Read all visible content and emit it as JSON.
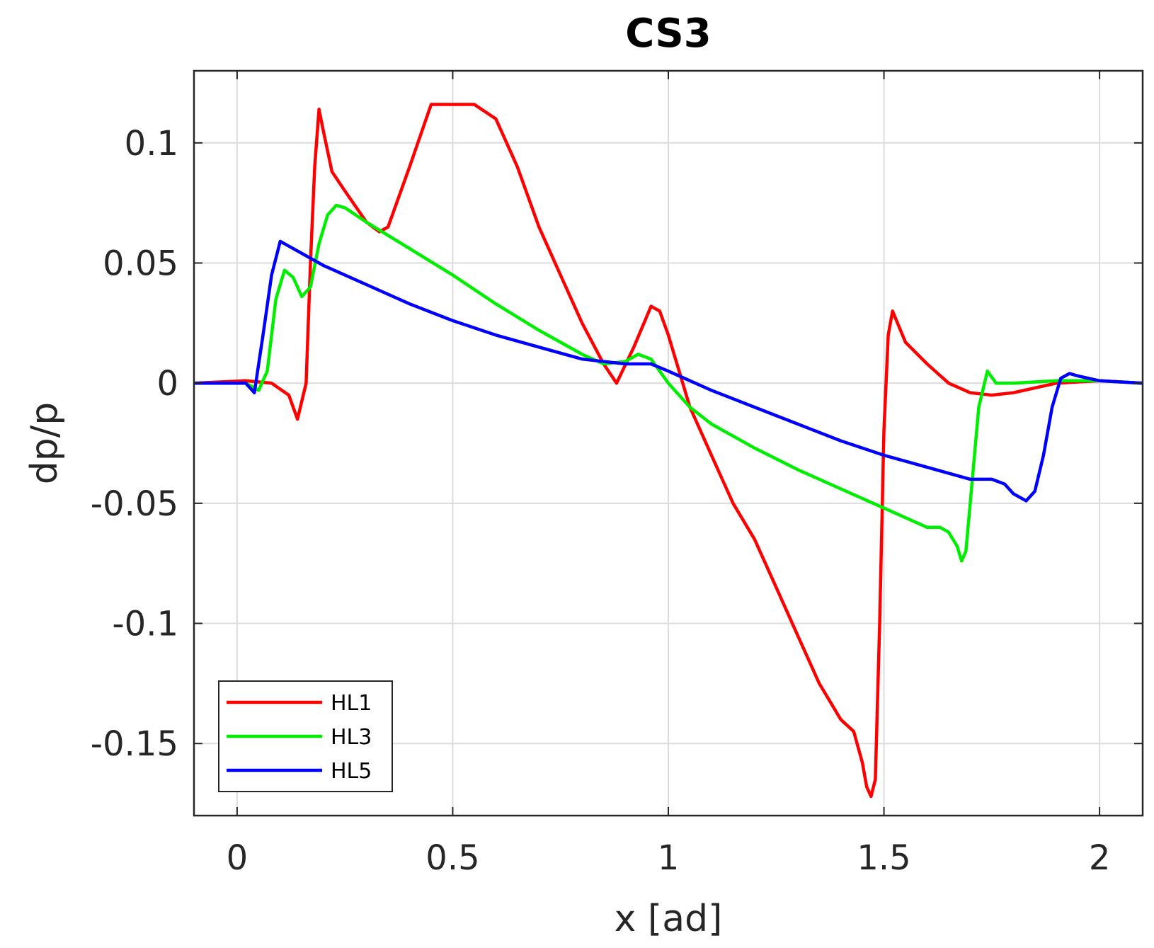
{
  "chart_data": {
    "type": "line",
    "title": "CS3",
    "xlabel": "x [ad]",
    "ylabel": "dp/p",
    "xlim": [
      -0.1,
      2.1
    ],
    "ylim": [
      -0.18,
      0.13
    ],
    "xticks": [
      0,
      0.5,
      1,
      1.5,
      2
    ],
    "xtick_labels": [
      "0",
      "0.5",
      "1",
      "1.5",
      "2"
    ],
    "yticks": [
      -0.15,
      -0.1,
      -0.05,
      0,
      0.05,
      0.1
    ],
    "ytick_labels": [
      "-0.15",
      "-0.1",
      "-0.05",
      "0",
      "0.05",
      "0.1"
    ],
    "grid": true,
    "legend_position": "bottom-left",
    "series": [
      {
        "name": "HL1",
        "color": "#ff0000",
        "x": [
          -0.1,
          0.02,
          0.08,
          0.12,
          0.14,
          0.16,
          0.17,
          0.18,
          0.19,
          0.2,
          0.22,
          0.25,
          0.3,
          0.33,
          0.35,
          0.4,
          0.45,
          0.5,
          0.55,
          0.6,
          0.65,
          0.7,
          0.75,
          0.8,
          0.85,
          0.88,
          0.92,
          0.96,
          0.98,
          1.0,
          1.05,
          1.1,
          1.15,
          1.2,
          1.25,
          1.3,
          1.35,
          1.4,
          1.43,
          1.45,
          1.46,
          1.47,
          1.48,
          1.49,
          1.5,
          1.51,
          1.52,
          1.55,
          1.6,
          1.65,
          1.7,
          1.75,
          1.8,
          1.85,
          1.9,
          2.0,
          2.1
        ],
        "y": [
          0,
          0.001,
          0.0,
          -0.005,
          -0.015,
          0.0,
          0.05,
          0.09,
          0.114,
          0.105,
          0.088,
          0.08,
          0.067,
          0.063,
          0.065,
          0.09,
          0.116,
          0.116,
          0.116,
          0.11,
          0.09,
          0.065,
          0.045,
          0.025,
          0.008,
          0.0,
          0.015,
          0.032,
          0.03,
          0.02,
          -0.01,
          -0.03,
          -0.05,
          -0.065,
          -0.085,
          -0.105,
          -0.125,
          -0.14,
          -0.145,
          -0.158,
          -0.168,
          -0.172,
          -0.165,
          -0.1,
          -0.02,
          0.02,
          0.03,
          0.017,
          0.008,
          0.0,
          -0.004,
          -0.005,
          -0.004,
          -0.002,
          0.0,
          0.001,
          0.0
        ]
      },
      {
        "name": "HL3",
        "color": "#00ee00",
        "x": [
          -0.1,
          0.02,
          0.05,
          0.07,
          0.09,
          0.11,
          0.13,
          0.15,
          0.17,
          0.19,
          0.21,
          0.23,
          0.25,
          0.3,
          0.4,
          0.5,
          0.6,
          0.7,
          0.8,
          0.85,
          0.9,
          0.93,
          0.96,
          1.0,
          1.05,
          1.1,
          1.2,
          1.3,
          1.4,
          1.5,
          1.6,
          1.63,
          1.65,
          1.67,
          1.68,
          1.69,
          1.7,
          1.72,
          1.74,
          1.76,
          1.8,
          1.9,
          2.0,
          2.1
        ],
        "y": [
          0,
          0.0,
          -0.003,
          0.005,
          0.035,
          0.047,
          0.044,
          0.036,
          0.04,
          0.058,
          0.07,
          0.074,
          0.073,
          0.067,
          0.056,
          0.045,
          0.033,
          0.022,
          0.012,
          0.008,
          0.009,
          0.012,
          0.01,
          0.0,
          -0.01,
          -0.017,
          -0.027,
          -0.036,
          -0.044,
          -0.052,
          -0.06,
          -0.06,
          -0.062,
          -0.068,
          -0.074,
          -0.07,
          -0.05,
          -0.01,
          0.005,
          0.0,
          0.0,
          0.001,
          0.001,
          0.0
        ]
      },
      {
        "name": "HL5",
        "color": "#0000ff",
        "x": [
          -0.1,
          0.02,
          0.04,
          0.06,
          0.08,
          0.1,
          0.12,
          0.15,
          0.2,
          0.3,
          0.4,
          0.5,
          0.6,
          0.7,
          0.8,
          0.9,
          0.96,
          1.0,
          1.1,
          1.2,
          1.3,
          1.4,
          1.5,
          1.6,
          1.7,
          1.75,
          1.78,
          1.8,
          1.83,
          1.85,
          1.87,
          1.89,
          1.91,
          1.93,
          1.95,
          2.0,
          2.1
        ],
        "y": [
          0,
          0.0,
          -0.004,
          0.02,
          0.045,
          0.059,
          0.057,
          0.054,
          0.049,
          0.041,
          0.033,
          0.026,
          0.02,
          0.015,
          0.01,
          0.008,
          0.008,
          0.005,
          -0.003,
          -0.01,
          -0.017,
          -0.024,
          -0.03,
          -0.035,
          -0.04,
          -0.04,
          -0.042,
          -0.046,
          -0.049,
          -0.045,
          -0.03,
          -0.01,
          0.002,
          0.004,
          0.003,
          0.001,
          0.0
        ]
      }
    ]
  }
}
